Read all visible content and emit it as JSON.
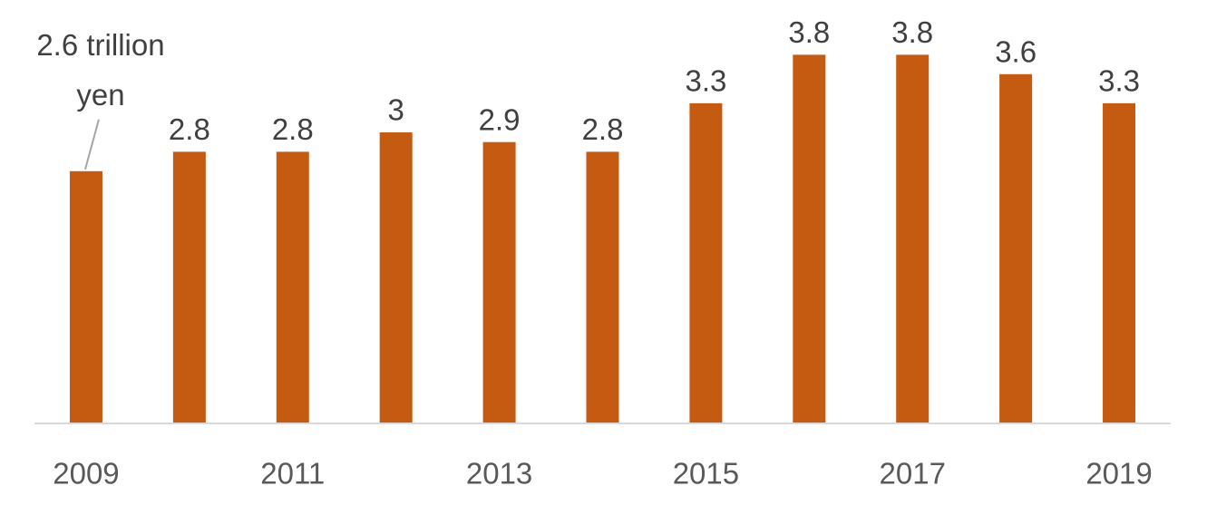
{
  "chart_data": {
    "type": "bar",
    "categories": [
      "2009",
      null,
      "2011",
      null,
      "2013",
      null,
      "2015",
      null,
      "2017",
      null,
      "2019"
    ],
    "values": [
      2.6,
      2.8,
      2.8,
      3,
      2.9,
      2.8,
      3.3,
      3.8,
      3.8,
      3.6,
      3.3
    ],
    "value_labels": [
      "2.6 trillion yen",
      "2.8",
      "2.8",
      "3",
      "2.9",
      "2.8",
      "3.3",
      "3.8",
      "3.8",
      "3.6",
      "3.3"
    ],
    "color": "#c55a11",
    "ylim": [
      0,
      4
    ]
  }
}
